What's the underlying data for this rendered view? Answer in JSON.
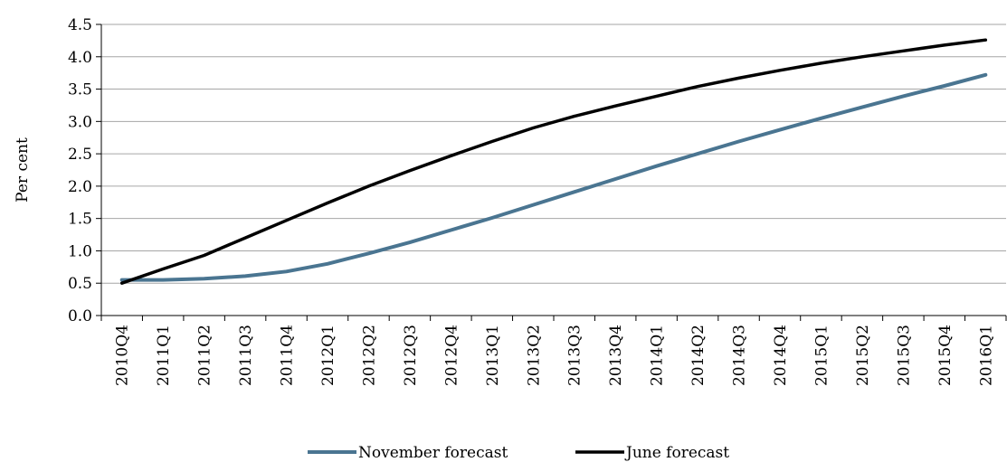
{
  "chart_data": {
    "type": "line",
    "ylabel": "Per cent",
    "xlabel": "",
    "ylim": [
      0.0,
      4.5
    ],
    "yticks": [
      "0.0",
      "0.5",
      "1.0",
      "1.5",
      "2.0",
      "2.5",
      "3.0",
      "3.5",
      "4.0",
      "4.5"
    ],
    "grid": true,
    "legend_position": "bottom",
    "categories": [
      "2010Q4",
      "2011Q1",
      "2011Q2",
      "2011Q3",
      "2011Q4",
      "2012Q1",
      "2012Q2",
      "2012Q3",
      "2012Q4",
      "2013Q1",
      "2013Q2",
      "2013Q3",
      "2013Q4",
      "2014Q1",
      "2014Q2",
      "2014Q3",
      "2014Q4",
      "2015Q1",
      "2015Q2",
      "2015Q3",
      "2015Q4",
      "2016Q1"
    ],
    "series": [
      {
        "name": "November forecast",
        "color": "#4a7591",
        "values": [
          0.55,
          0.55,
          0.57,
          0.61,
          0.68,
          0.8,
          0.96,
          1.13,
          1.32,
          1.51,
          1.71,
          1.91,
          2.11,
          2.31,
          2.5,
          2.69,
          2.87,
          3.05,
          3.22,
          3.39,
          3.55,
          3.72
        ]
      },
      {
        "name": "June forecast",
        "color": "#000000",
        "values": [
          0.5,
          0.72,
          0.93,
          1.2,
          1.47,
          1.74,
          2.0,
          2.24,
          2.47,
          2.69,
          2.9,
          3.08,
          3.24,
          3.39,
          3.54,
          3.67,
          3.79,
          3.9,
          4.0,
          4.09,
          4.18,
          4.26
        ]
      }
    ]
  }
}
